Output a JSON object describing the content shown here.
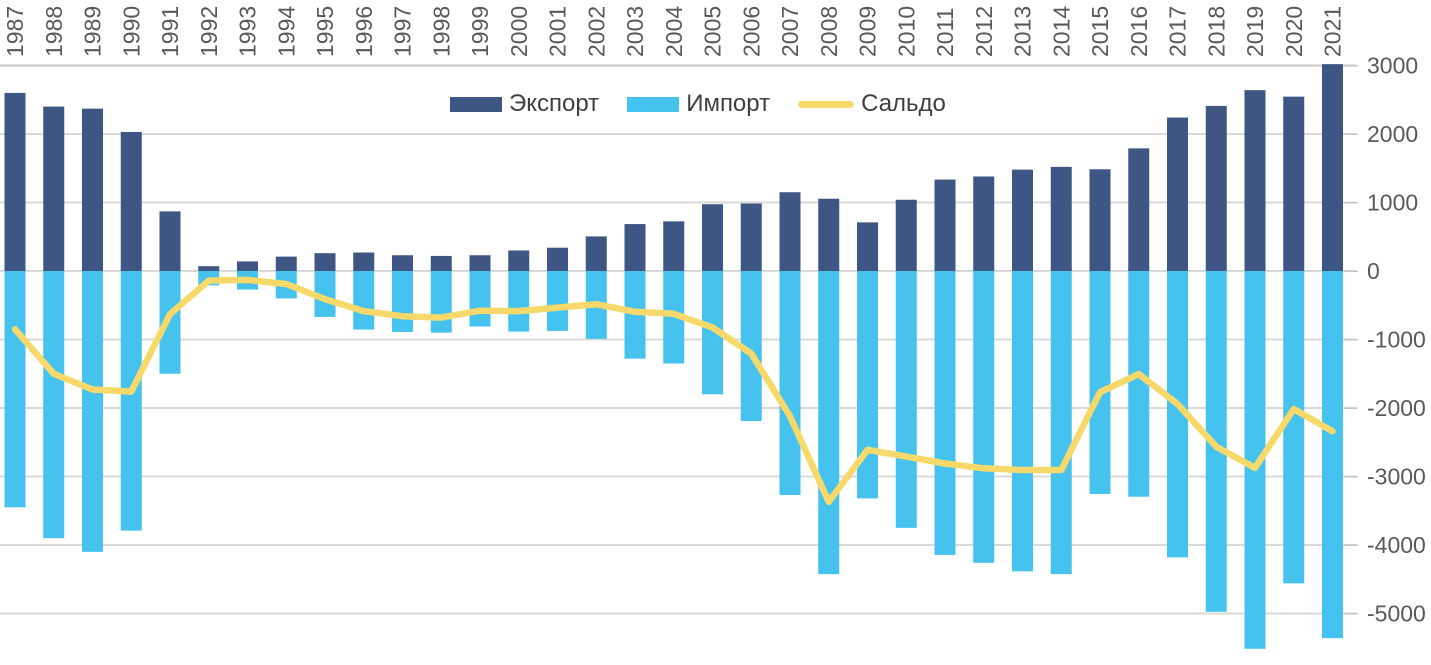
{
  "chart_data": {
    "type": "combo-bar-line",
    "title": "",
    "categories": [
      "1987",
      "1988",
      "1989",
      "1990",
      "1991",
      "1992",
      "1993",
      "1994",
      "1995",
      "1996",
      "1997",
      "1998",
      "1999",
      "2000",
      "2001",
      "2002",
      "2003",
      "2004",
      "2005",
      "2006",
      "2007",
      "2008",
      "2009",
      "2010",
      "2011",
      "2012",
      "2013",
      "2014",
      "2015",
      "2016",
      "2017",
      "2018",
      "2019",
      "2020",
      "2021"
    ],
    "series": [
      {
        "name": "Экспорт",
        "type": "bar",
        "color": "#3E5684",
        "values": [
          2600,
          2400,
          2370,
          2030,
          870,
          70,
          140,
          210,
          260,
          270,
          230,
          220,
          230,
          300,
          340,
          505,
          685,
          725,
          975,
          985,
          1150,
          1055,
          710,
          1040,
          1335,
          1380,
          1480,
          1520,
          1485,
          1790,
          2240,
          2410,
          2640,
          2545,
          3020
        ]
      },
      {
        "name": "Импорт",
        "type": "bar",
        "color": "#45C2EE",
        "values": [
          -3450,
          -3900,
          -4100,
          -3790,
          -1500,
          -210,
          -270,
          -400,
          -670,
          -855,
          -890,
          -900,
          -810,
          -885,
          -875,
          -990,
          -1280,
          -1350,
          -1800,
          -2190,
          -3270,
          -4425,
          -3320,
          -3750,
          -4145,
          -4260,
          -4385,
          -4425,
          -3255,
          -3295,
          -4180,
          -4975,
          -5515,
          -4560,
          -5360
        ]
      },
      {
        "name": "Сальдо",
        "type": "line",
        "color": "#F6D96A",
        "values": [
          -850,
          -1500,
          -1730,
          -1760,
          -630,
          -140,
          -130,
          -190,
          -410,
          -585,
          -660,
          -680,
          -580,
          -585,
          -535,
          -485,
          -595,
          -625,
          -825,
          -1205,
          -2120,
          -3370,
          -2610,
          -2710,
          -2810,
          -2880,
          -2905,
          -2905,
          -1770,
          -1505,
          -1940,
          -2565,
          -2875,
          -2015,
          -2340
        ]
      }
    ],
    "y_axis": {
      "min": -5000,
      "max": 3000,
      "step": 1000,
      "position": "right",
      "tick_labels": [
        "3000",
        "2000",
        "1000",
        "0",
        "-1000",
        "-2000",
        "-3000",
        "-4000",
        "-5000"
      ]
    },
    "x_axis": {
      "position": "top",
      "label_rotation": -90
    },
    "legend_position": "top-center",
    "grid": true
  },
  "colors": {
    "grid": "#D9D9D9",
    "grid_top": "#C9C9C9",
    "tick": "#C6C6C6",
    "axis_text": "#595959",
    "legend_text": "#3F3F3F",
    "background": "#FFFFFF"
  }
}
